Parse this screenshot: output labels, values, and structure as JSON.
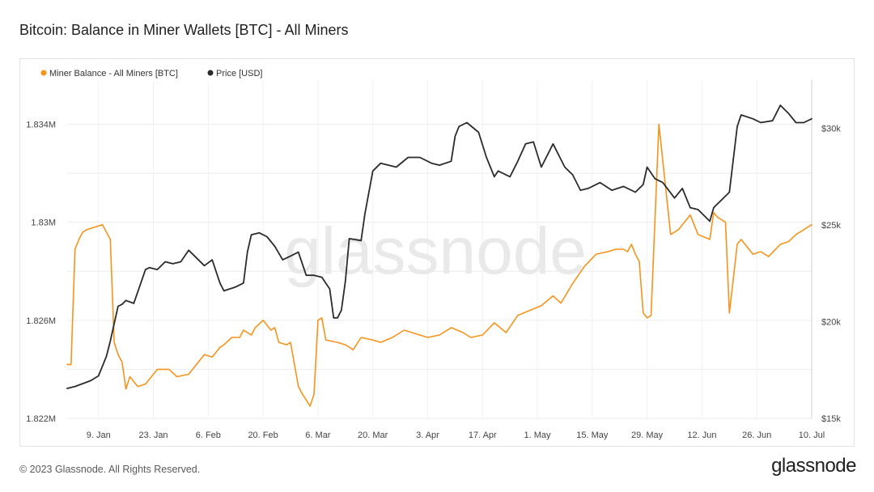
{
  "page": {
    "title": "Bitcoin: Balance in Miner Wallets [BTC] - All Miners",
    "footer": "© 2023 Glassnode. All Rights Reserved.",
    "brand": "glassnode",
    "watermark": "glassnode"
  },
  "chart_data": {
    "type": "line",
    "grid": true,
    "legend_position": "top-left",
    "x_ticks": [
      "9. Jan",
      "23. Jan",
      "6. Feb",
      "20. Feb",
      "6. Mar",
      "20. Mar",
      "3. Apr",
      "17. Apr",
      "1. May",
      "15. May",
      "29. May",
      "12. Jun",
      "26. Jun",
      "10. Jul"
    ],
    "x_range": [
      "2023-01-01",
      "2023-07-10"
    ],
    "y_left": {
      "ticks": [
        "1.822M",
        "1.826M",
        "1.83M",
        "1.834M"
      ],
      "tick_values": [
        1822000,
        1826000,
        1830000,
        1834000
      ],
      "range": [
        1822000,
        1835800
      ]
    },
    "y_right": {
      "ticks": [
        "$15k",
        "$20k",
        "$25k",
        "$30k"
      ],
      "tick_values": [
        15000,
        20000,
        25000,
        30000
      ],
      "range": [
        15000,
        32500
      ]
    },
    "series": [
      {
        "name": "Miner Balance - All Miners [BTC]",
        "axis": "left",
        "color": "#f7931a",
        "x": [
          "2023-01-01",
          "2023-01-02",
          "2023-01-03",
          "2023-01-04",
          "2023-01-05",
          "2023-01-06",
          "2023-01-08",
          "2023-01-10",
          "2023-01-12",
          "2023-01-13",
          "2023-01-14",
          "2023-01-15",
          "2023-01-16",
          "2023-01-17",
          "2023-01-19",
          "2023-01-21",
          "2023-01-22",
          "2023-01-24",
          "2023-01-27",
          "2023-01-29",
          "2023-02-01",
          "2023-02-03",
          "2023-02-05",
          "2023-02-07",
          "2023-02-09",
          "2023-02-10",
          "2023-02-12",
          "2023-02-14",
          "2023-02-15",
          "2023-02-17",
          "2023-02-18",
          "2023-02-20",
          "2023-02-22",
          "2023-02-23",
          "2023-02-24",
          "2023-02-26",
          "2023-02-27",
          "2023-03-01",
          "2023-03-02",
          "2023-03-04",
          "2023-03-05",
          "2023-03-06",
          "2023-03-07",
          "2023-03-08",
          "2023-03-11",
          "2023-03-13",
          "2023-03-15",
          "2023-03-17",
          "2023-03-20",
          "2023-03-22",
          "2023-03-25",
          "2023-03-28",
          "2023-04-01",
          "2023-04-03",
          "2023-04-06",
          "2023-04-09",
          "2023-04-12",
          "2023-04-14",
          "2023-04-17",
          "2023-04-20",
          "2023-04-23",
          "2023-04-26",
          "2023-04-29",
          "2023-05-02",
          "2023-05-05",
          "2023-05-07",
          "2023-05-10",
          "2023-05-13",
          "2023-05-16",
          "2023-05-19",
          "2023-05-21",
          "2023-05-23",
          "2023-05-24",
          "2023-05-25",
          "2023-05-26",
          "2023-05-27",
          "2023-05-28",
          "2023-05-29",
          "2023-05-30",
          "2023-06-01",
          "2023-06-04",
          "2023-06-06",
          "2023-06-09",
          "2023-06-11",
          "2023-06-14",
          "2023-06-15",
          "2023-06-16",
          "2023-06-18",
          "2023-06-19",
          "2023-06-21",
          "2023-06-22",
          "2023-06-25",
          "2023-06-27",
          "2023-06-29",
          "2023-07-02",
          "2023-07-04",
          "2023-07-06",
          "2023-07-08",
          "2023-07-10"
        ],
        "values": [
          1824200,
          1824200,
          1828900,
          1829300,
          1829600,
          1829700,
          1829800,
          1829900,
          1829300,
          1825100,
          1824600,
          1824300,
          1823200,
          1823700,
          1823300,
          1823400,
          1823600,
          1824000,
          1824000,
          1823700,
          1823800,
          1824200,
          1824600,
          1824500,
          1824900,
          1825000,
          1825300,
          1825300,
          1825600,
          1825400,
          1825700,
          1826000,
          1825600,
          1825700,
          1825100,
          1825000,
          1825100,
          1823300,
          1823000,
          1822500,
          1823000,
          1826000,
          1826100,
          1825200,
          1825100,
          1825000,
          1824800,
          1825300,
          1825200,
          1825100,
          1825300,
          1825600,
          1825400,
          1825300,
          1825400,
          1825700,
          1825500,
          1825300,
          1825400,
          1825900,
          1825500,
          1826200,
          1826400,
          1826600,
          1827000,
          1826700,
          1827500,
          1828200,
          1828700,
          1828800,
          1828900,
          1828900,
          1828800,
          1829100,
          1828700,
          1828400,
          1826300,
          1826100,
          1826200,
          1834000,
          1829500,
          1829700,
          1830300,
          1829500,
          1829300,
          1830400,
          1830200,
          1830000,
          1826300,
          1829100,
          1829300,
          1828700,
          1828800,
          1828600,
          1829100,
          1829200,
          1829500,
          1829700,
          1829900
        ]
      },
      {
        "name": "Price [USD]",
        "axis": "right",
        "color": "#2b2b2b",
        "x": [
          "2023-01-01",
          "2023-01-03",
          "2023-01-05",
          "2023-01-07",
          "2023-01-09",
          "2023-01-11",
          "2023-01-12",
          "2023-01-13",
          "2023-01-14",
          "2023-01-15",
          "2023-01-16",
          "2023-01-18",
          "2023-01-21",
          "2023-01-22",
          "2023-01-24",
          "2023-01-26",
          "2023-01-28",
          "2023-01-30",
          "2023-02-01",
          "2023-02-03",
          "2023-02-05",
          "2023-02-07",
          "2023-02-09",
          "2023-02-10",
          "2023-02-13",
          "2023-02-15",
          "2023-02-16",
          "2023-02-17",
          "2023-02-19",
          "2023-02-21",
          "2023-02-23",
          "2023-02-25",
          "2023-02-27",
          "2023-03-01",
          "2023-03-03",
          "2023-03-05",
          "2023-03-07",
          "2023-03-09",
          "2023-03-10",
          "2023-03-11",
          "2023-03-12",
          "2023-03-13",
          "2023-03-14",
          "2023-03-17",
          "2023-03-18",
          "2023-03-20",
          "2023-03-22",
          "2023-03-24",
          "2023-03-26",
          "2023-03-29",
          "2023-04-01",
          "2023-04-04",
          "2023-04-06",
          "2023-04-09",
          "2023-04-10",
          "2023-04-11",
          "2023-04-13",
          "2023-04-16",
          "2023-04-18",
          "2023-04-20",
          "2023-04-21",
          "2023-04-24",
          "2023-04-26",
          "2023-04-28",
          "2023-04-30",
          "2023-05-02",
          "2023-05-05",
          "2023-05-08",
          "2023-05-10",
          "2023-05-12",
          "2023-05-14",
          "2023-05-17",
          "2023-05-20",
          "2023-05-23",
          "2023-05-26",
          "2023-05-28",
          "2023-05-29",
          "2023-05-31",
          "2023-06-02",
          "2023-06-05",
          "2023-06-07",
          "2023-06-09",
          "2023-06-11",
          "2023-06-14",
          "2023-06-15",
          "2023-06-17",
          "2023-06-19",
          "2023-06-21",
          "2023-06-22",
          "2023-06-25",
          "2023-06-27",
          "2023-06-30",
          "2023-07-02",
          "2023-07-04",
          "2023-07-06",
          "2023-07-08",
          "2023-07-10"
        ],
        "values": [
          16550,
          16650,
          16800,
          16950,
          17200,
          18200,
          19000,
          19900,
          20800,
          20900,
          21100,
          20950,
          22700,
          22800,
          22700,
          23100,
          23000,
          23100,
          23700,
          23300,
          22900,
          23200,
          22000,
          21600,
          21800,
          22000,
          23600,
          24500,
          24600,
          24400,
          23900,
          23200,
          23400,
          23600,
          22400,
          22400,
          22300,
          21700,
          20200,
          20200,
          20600,
          22100,
          24300,
          24200,
          25600,
          27800,
          28200,
          28100,
          28000,
          28500,
          28500,
          28200,
          28100,
          28300,
          29600,
          30100,
          30300,
          29800,
          28500,
          27500,
          27800,
          27500,
          28300,
          29200,
          29300,
          28000,
          29200,
          28000,
          27600,
          26800,
          26900,
          27200,
          26800,
          27000,
          26700,
          27100,
          28000,
          27400,
          27200,
          26400,
          26900,
          25900,
          25800,
          25200,
          25900,
          26300,
          26700,
          30100,
          30700,
          30500,
          30300,
          30400,
          31200,
          30800,
          30300,
          30300,
          30500
        ]
      }
    ]
  }
}
